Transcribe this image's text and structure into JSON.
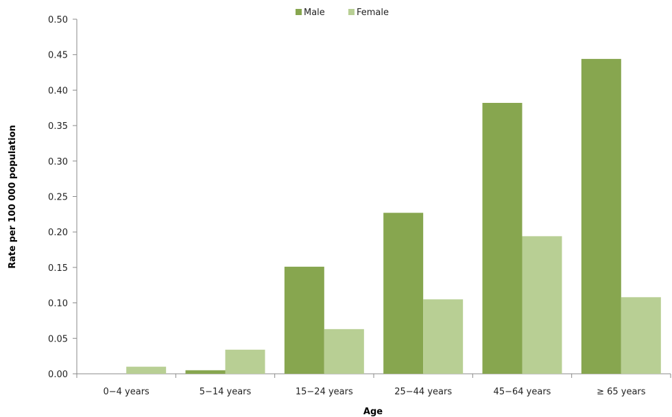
{
  "chart_data": {
    "type": "bar",
    "categories": [
      "0−4 years",
      "5−14 years",
      "15−24 years",
      "25−44 years",
      "45−64 years",
      "≥ 65 years"
    ],
    "series": [
      {
        "name": "Male",
        "color": "#87a64f",
        "values": [
          0.0,
          0.005,
          0.151,
          0.227,
          0.382,
          0.444
        ]
      },
      {
        "name": "Female",
        "color": "#b8cf94",
        "values": [
          0.01,
          0.034,
          0.063,
          0.105,
          0.194,
          0.108
        ]
      }
    ],
    "xlabel": "Age",
    "ylabel": "Rate per 100 000 population",
    "ylim": [
      0,
      0.5
    ],
    "yticks": [
      "0.00",
      "0.05",
      "0.10",
      "0.15",
      "0.20",
      "0.25",
      "0.30",
      "0.35",
      "0.40",
      "0.45",
      "0.50"
    ],
    "grid": false,
    "legend_position": "top-center"
  }
}
